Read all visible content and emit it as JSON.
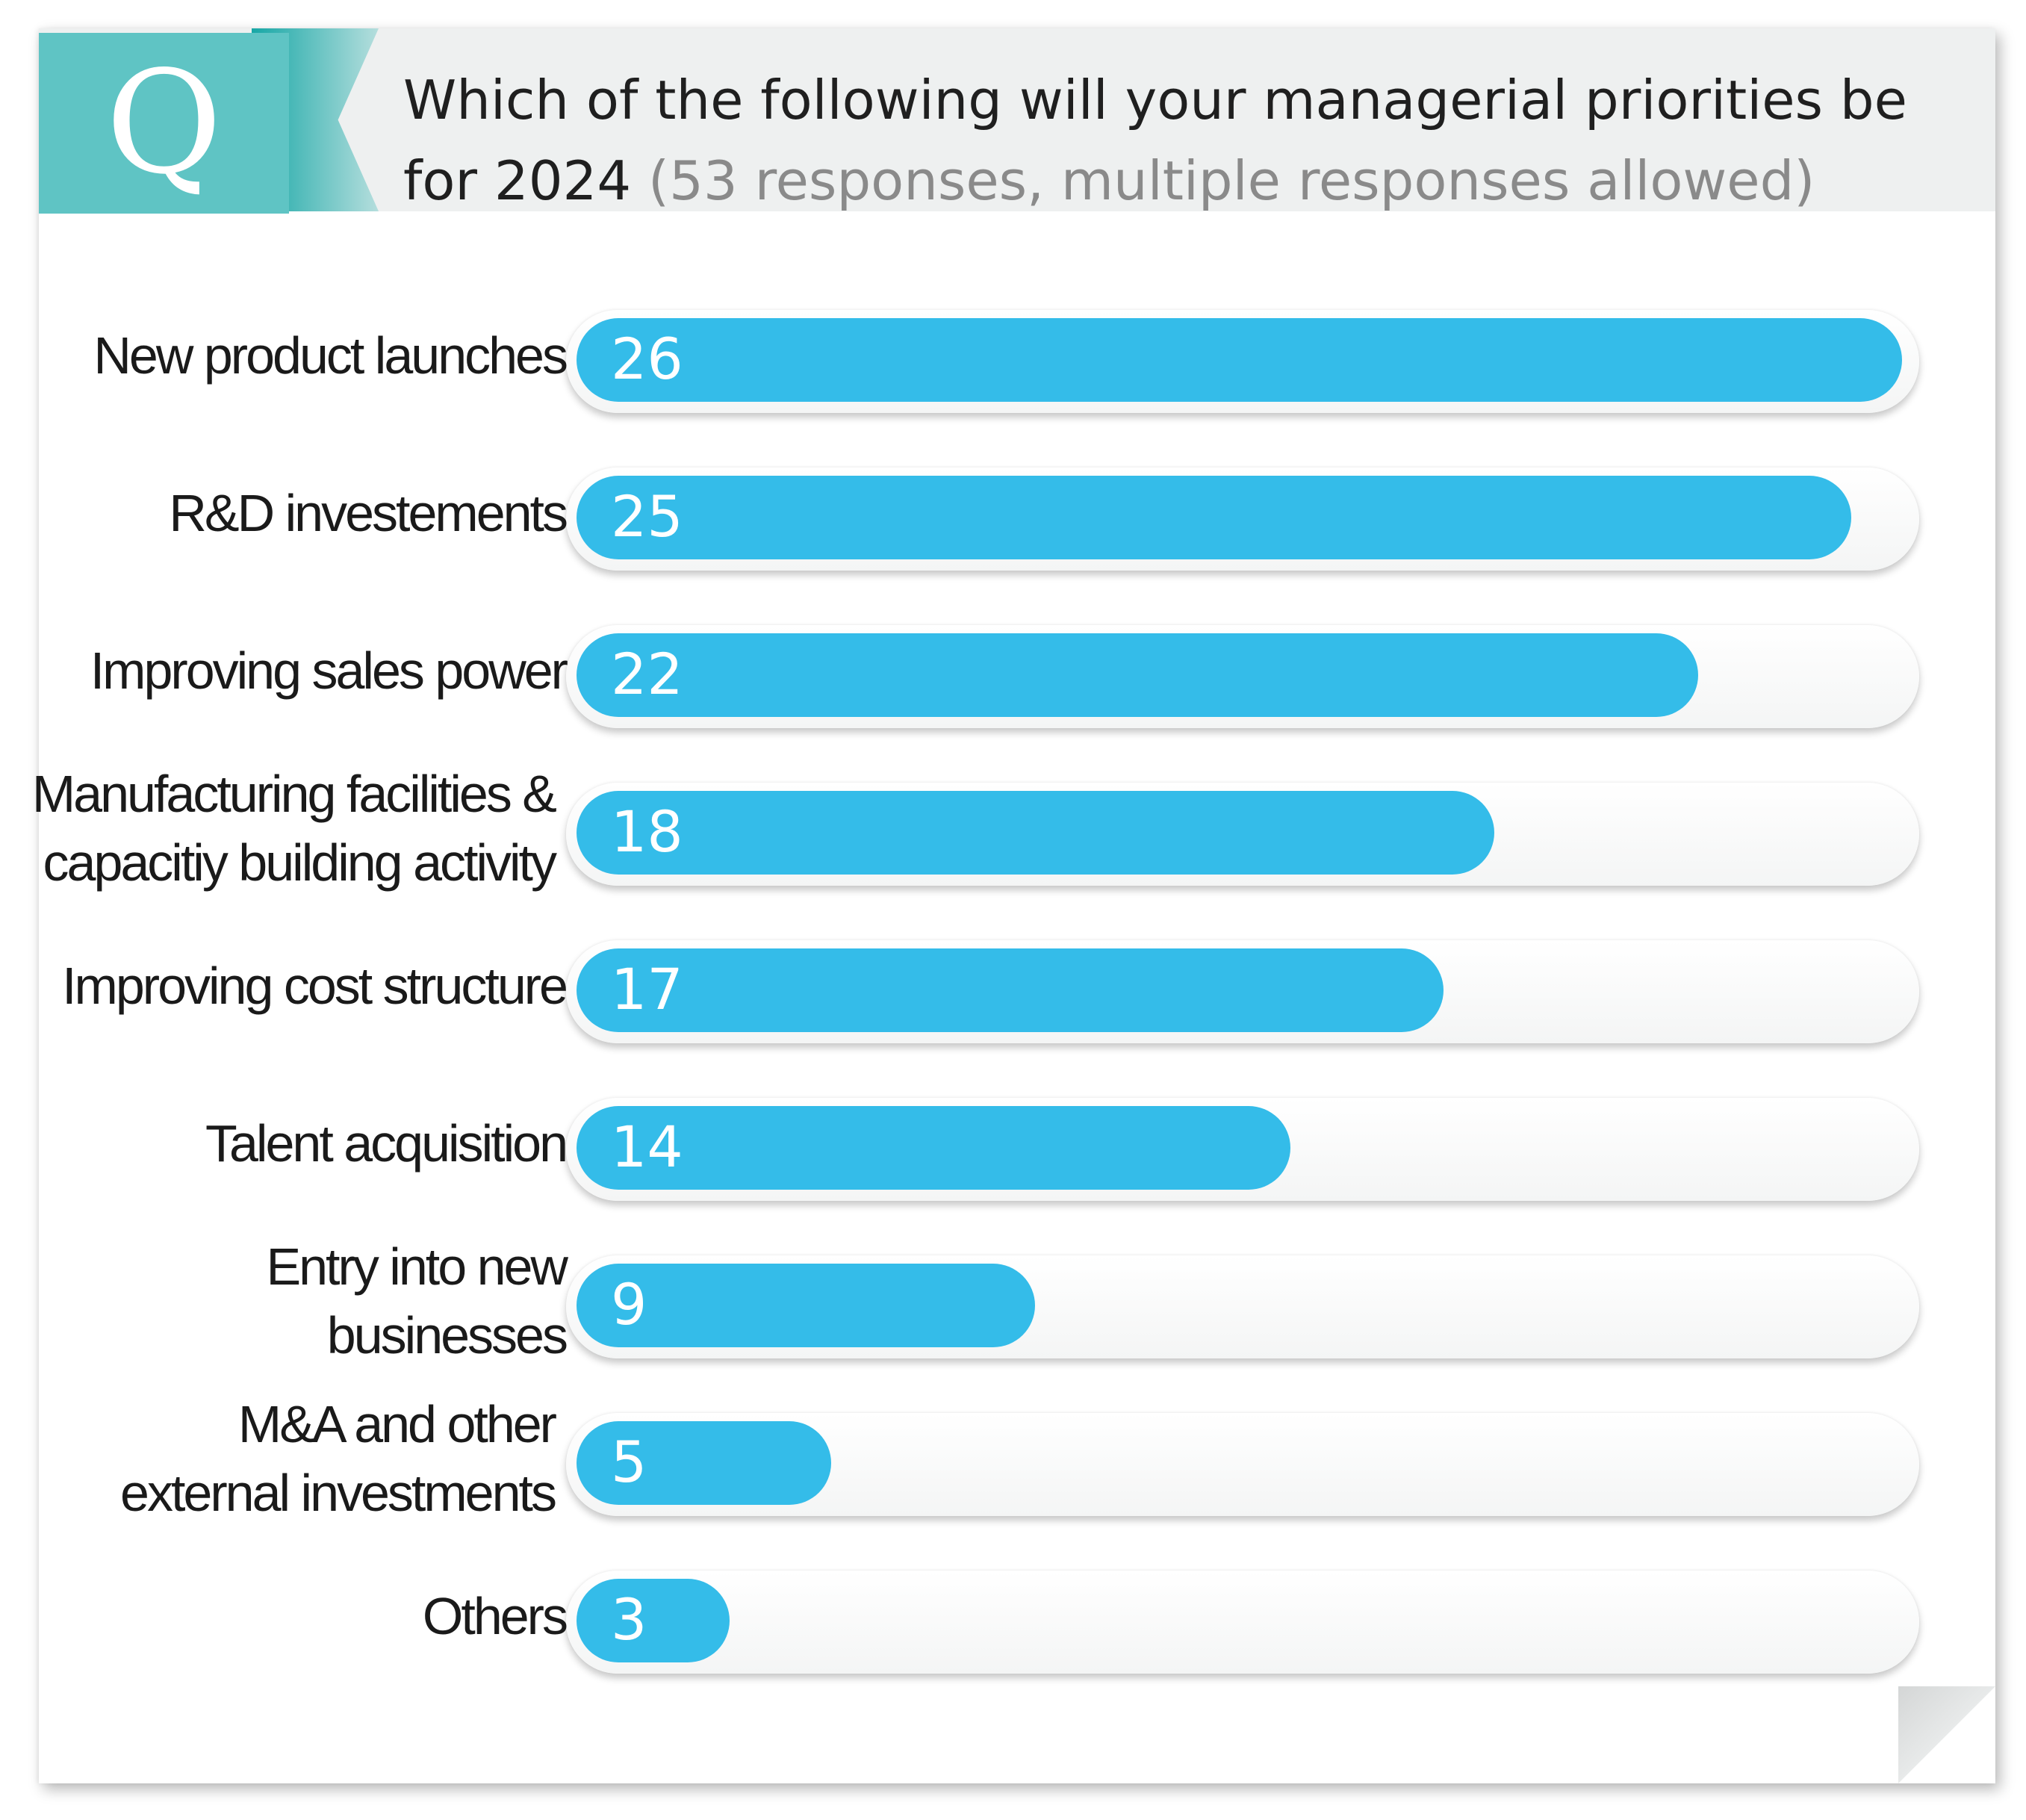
{
  "header": {
    "q_letter": "Q",
    "question_main": "Which of the following will your managerial priorities be for 2024",
    "question_sub": "(53 responses, multiple responses allowed)"
  },
  "colors": {
    "bar": "#34bce9",
    "badge": "#5fc4c4",
    "badge_shadow": "#17a7a6",
    "header_band": "#eef0f0"
  },
  "chart_data": {
    "type": "bar",
    "orientation": "horizontal",
    "title": "Which of the following will your managerial priorities be for 2024",
    "subtitle": "(53 responses, multiple responses allowed)",
    "categories": [
      "New product launches",
      "R&D investements",
      "Improving sales power",
      "Manufacturing facilities &\ncapacitiy building activity",
      "Improving cost structure",
      "Talent acquisition",
      "Entry into new businesses",
      "M&A and other\nexternal investments",
      "Others"
    ],
    "values": [
      26,
      25,
      22,
      18,
      17,
      14,
      9,
      5,
      3
    ],
    "xlim": [
      0,
      26
    ],
    "grid": false,
    "legend": "none"
  }
}
